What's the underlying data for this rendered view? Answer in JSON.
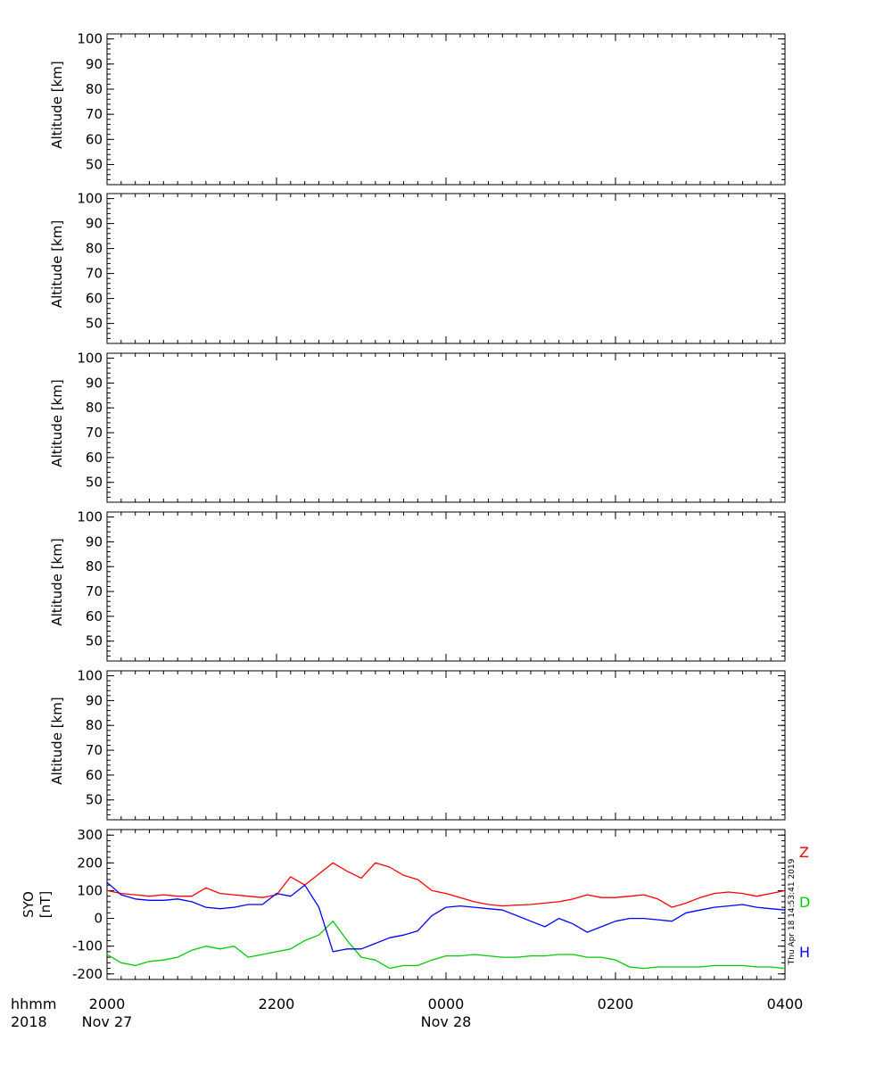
{
  "colors": {
    "axes": "#000000",
    "H": "#0000ff",
    "D": "#00cc00",
    "Z": "#ff0000"
  },
  "x_axis": {
    "row1_label": "hhmm",
    "row2_label": "2018",
    "ticks": [
      "2000",
      "2200",
      "0000",
      "0200",
      "0400"
    ],
    "date_labels": [
      {
        "tick_index": 0,
        "text": "Nov 27"
      },
      {
        "tick_index": 2,
        "text": "Nov 28"
      }
    ]
  },
  "timestamp": "Thu Apr 18 14:53:41 2019",
  "chart_data": [
    {
      "type": "heatmap",
      "ylabel": "Altitude  [km]",
      "ylim": [
        42,
        102
      ],
      "yticks": [
        50,
        60,
        70,
        80,
        90,
        100
      ],
      "xlim": [
        "2018-11-27 20:00",
        "2018-11-28 04:00"
      ]
    },
    {
      "type": "heatmap",
      "ylabel": "Altitude  [km]",
      "ylim": [
        42,
        102
      ],
      "yticks": [
        50,
        60,
        70,
        80,
        90,
        100
      ],
      "xlim": [
        "2018-11-27 20:00",
        "2018-11-28 04:00"
      ]
    },
    {
      "type": "heatmap",
      "ylabel": "Altitude  [km]",
      "ylim": [
        42,
        102
      ],
      "yticks": [
        50,
        60,
        70,
        80,
        90,
        100
      ],
      "xlim": [
        "2018-11-27 20:00",
        "2018-11-28 04:00"
      ]
    },
    {
      "type": "heatmap",
      "ylabel": "Altitude  [km]",
      "ylim": [
        42,
        102
      ],
      "yticks": [
        50,
        60,
        70,
        80,
        90,
        100
      ],
      "xlim": [
        "2018-11-27 20:00",
        "2018-11-28 04:00"
      ]
    },
    {
      "type": "heatmap",
      "ylabel": "Altitude  [km]",
      "ylim": [
        42,
        102
      ],
      "yticks": [
        50,
        60,
        70,
        80,
        90,
        100
      ],
      "xlim": [
        "2018-11-27 20:00",
        "2018-11-28 04:00"
      ]
    },
    {
      "type": "line",
      "ylabel": [
        "SYO",
        "[nT]"
      ],
      "ylim": [
        -220,
        320
      ],
      "yticks": [
        -200,
        -100,
        0,
        100,
        200,
        300
      ],
      "xlim": [
        "2018-11-27 20:00",
        "2018-11-28 04:00"
      ],
      "x": [
        "2018-11-27 20:00",
        "2018-11-27 20:10",
        "2018-11-27 20:20",
        "2018-11-27 20:30",
        "2018-11-27 20:40",
        "2018-11-27 20:50",
        "2018-11-27 21:00",
        "2018-11-27 21:10",
        "2018-11-27 21:20",
        "2018-11-27 21:30",
        "2018-11-27 21:40",
        "2018-11-27 21:50",
        "2018-11-27 22:00",
        "2018-11-27 22:10",
        "2018-11-27 22:20",
        "2018-11-27 22:30",
        "2018-11-27 22:40",
        "2018-11-27 22:50",
        "2018-11-27 23:00",
        "2018-11-27 23:10",
        "2018-11-27 23:20",
        "2018-11-27 23:30",
        "2018-11-27 23:40",
        "2018-11-27 23:50",
        "2018-11-28 00:00",
        "2018-11-28 00:10",
        "2018-11-28 00:20",
        "2018-11-28 00:30",
        "2018-11-28 00:40",
        "2018-11-28 00:50",
        "2018-11-28 01:00",
        "2018-11-28 01:10",
        "2018-11-28 01:20",
        "2018-11-28 01:30",
        "2018-11-28 01:40",
        "2018-11-28 01:50",
        "2018-11-28 02:00",
        "2018-11-28 02:10",
        "2018-11-28 02:20",
        "2018-11-28 02:30",
        "2018-11-28 02:40",
        "2018-11-28 02:50",
        "2018-11-28 03:00",
        "2018-11-28 03:10",
        "2018-11-28 03:20",
        "2018-11-28 03:30",
        "2018-11-28 03:40",
        "2018-11-28 03:50",
        "2018-11-28 04:00"
      ],
      "series": [
        {
          "name": "Z",
          "color": "#ff0000",
          "values": [
            100,
            90,
            85,
            80,
            85,
            80,
            80,
            110,
            90,
            85,
            80,
            75,
            85,
            150,
            120,
            160,
            200,
            170,
            145,
            200,
            185,
            155,
            140,
            100,
            90,
            75,
            60,
            50,
            45,
            48,
            50,
            55,
            60,
            70,
            85,
            75,
            75,
            80,
            85,
            70,
            40,
            55,
            75,
            90,
            95,
            90,
            80,
            90,
            100
          ]
        },
        {
          "name": "D",
          "color": "#00cc00",
          "values": [
            -130,
            -160,
            -170,
            -155,
            -150,
            -140,
            -115,
            -100,
            -110,
            -100,
            -140,
            -130,
            -120,
            -110,
            -80,
            -60,
            -10,
            -80,
            -140,
            -150,
            -180,
            -170,
            -170,
            -150,
            -135,
            -135,
            -130,
            -135,
            -140,
            -140,
            -135,
            -135,
            -130,
            -130,
            -140,
            -140,
            -150,
            -175,
            -180,
            -175,
            -175,
            -175,
            -175,
            -170,
            -170,
            -170,
            -175,
            -175,
            -180
          ]
        },
        {
          "name": "H",
          "color": "#0000ff",
          "values": [
            130,
            85,
            70,
            65,
            65,
            70,
            60,
            40,
            35,
            40,
            50,
            50,
            90,
            80,
            120,
            40,
            -120,
            -110,
            -110,
            -90,
            -70,
            -60,
            -45,
            10,
            40,
            45,
            40,
            35,
            30,
            10,
            -10,
            -30,
            0,
            -20,
            -50,
            -30,
            -10,
            0,
            0,
            -5,
            -10,
            20,
            30,
            40,
            45,
            50,
            40,
            35,
            30
          ]
        }
      ]
    }
  ]
}
